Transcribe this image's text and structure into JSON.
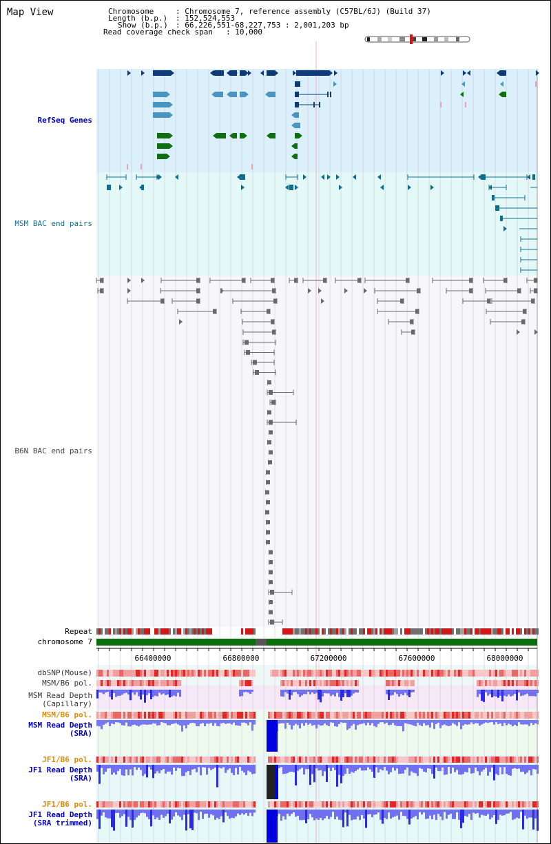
{
  "title": "Map View",
  "header": {
    "chromosome_key": "Chromosome",
    "chromosome_val": ": Chromosome 7, reference assembly (C57BL/6J) (Build 37)",
    "length_key": "Length (b.p.)",
    "length_val": ": 152,524,553",
    "show_key": "Show (b.p.)",
    "show_val": ": 66,226,551-68,227,753 : 2,001,203 bp",
    "coverage_key": "Read coverage check span",
    "coverage_val": ": 10,000"
  },
  "tracks": {
    "refseq": "RefSeq Genes",
    "msm_bac": "MSM BAC end pairs",
    "b6n_bac": "B6N BAC end pairs",
    "repeat": "Repeat",
    "chromosome": "chromosome 7",
    "dbsnp": "dbSNP(Mouse)",
    "msm_b6_pol": "MSM/B6 pol.",
    "msm_depth_cap": "MSM Read Depth\n(Capillary)",
    "msm_b6_pol2": "MSM/B6 pol.",
    "msm_depth_sra": "MSM Read Depth\n(SRA)",
    "jf1_b6_pol": "JF1/B6 pol.",
    "jf1_depth_sra": "JF1 Read Depth\n(SRA)",
    "jf1_b6_pol2": "JF1/B6 pol.",
    "jf1_depth_trim": "JF1 Read Depth\n(SRA trimmed)"
  },
  "axis": {
    "ticks": [
      "66400000",
      "66800000",
      "67200000",
      "67600000",
      "68000000"
    ]
  },
  "colors": {
    "refseq_bg": "#dbf0fb",
    "msm_bg": "#e5f8f8",
    "b6n_bg": "#f7f7fb",
    "gene_navy": "#0e3a78",
    "gene_blue": "#4a95c0",
    "gene_green": "#106e10",
    "bac_teal": "#0f6e90",
    "bac_gray": "#6a6a6a",
    "depth_blue": "#6868f0",
    "chromosome_green": "#0d6e0d",
    "label_blue": "#0000c0",
    "label_orange": "#e08a00"
  }
}
